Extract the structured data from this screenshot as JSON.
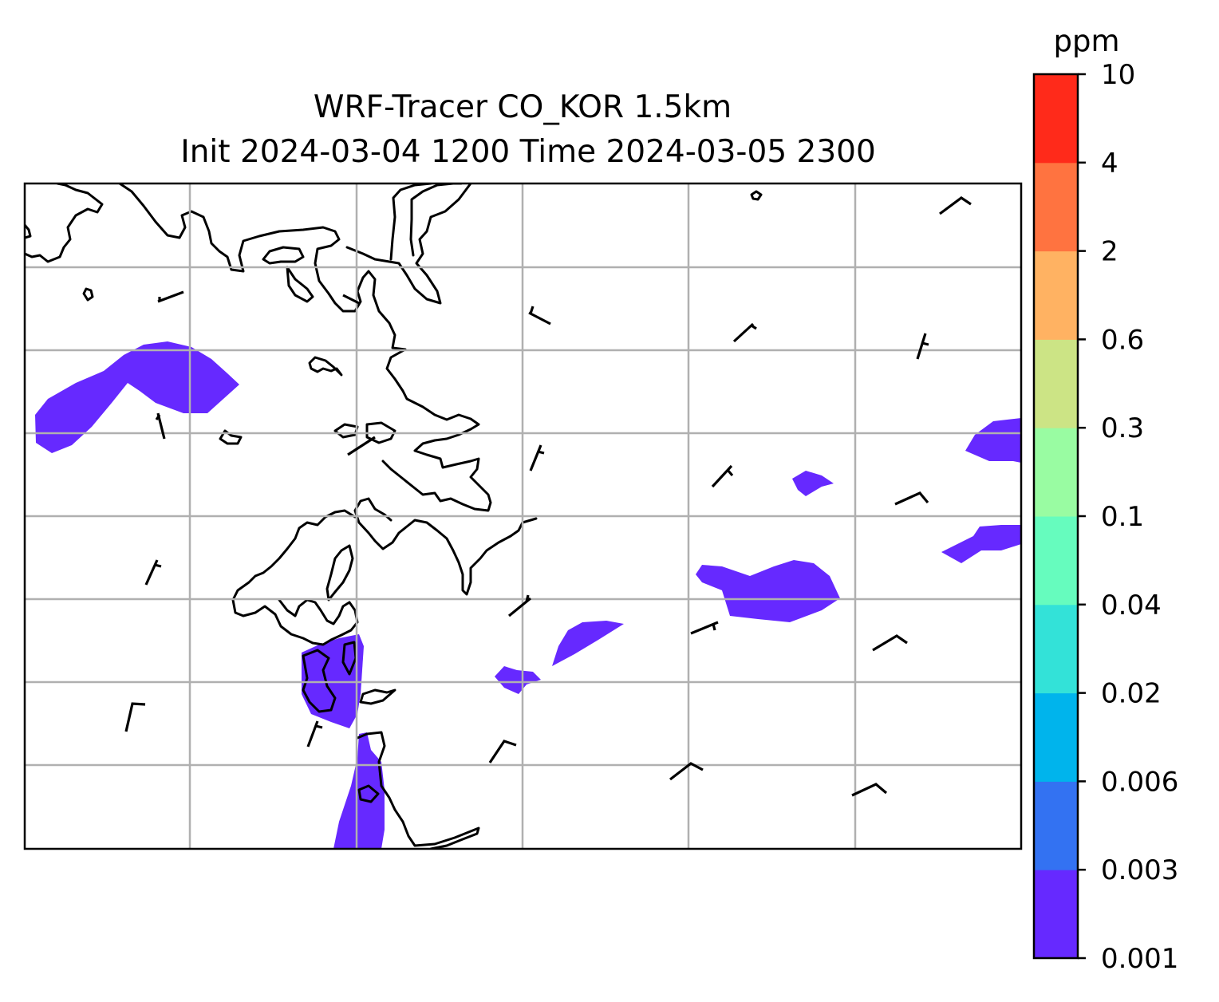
{
  "title": {
    "line1": "WRF-Tracer CO_KOR 1.5km",
    "line2": "Init 2024-03-04 1200 Time 2024-03-05 2300"
  },
  "colorbar": {
    "unit": "ppm",
    "levels": [
      "0.001",
      "0.003",
      "0.006",
      "0.02",
      "0.04",
      "0.1",
      "0.3",
      "0.6",
      "2",
      "4",
      "10"
    ],
    "colors": [
      "#6629ff",
      "#3372f2",
      "#00b4ec",
      "#33e2d8",
      "#66fcbe",
      "#99fca2",
      "#cce485",
      "#ffb262",
      "#ff7340",
      "#ff2a1a"
    ]
  },
  "map": {
    "tracer_color": "#6629ff",
    "coastline_color": "#000000",
    "gridline_color": "#b0b0b0",
    "gridlines": true,
    "wind_barbs": true
  }
}
